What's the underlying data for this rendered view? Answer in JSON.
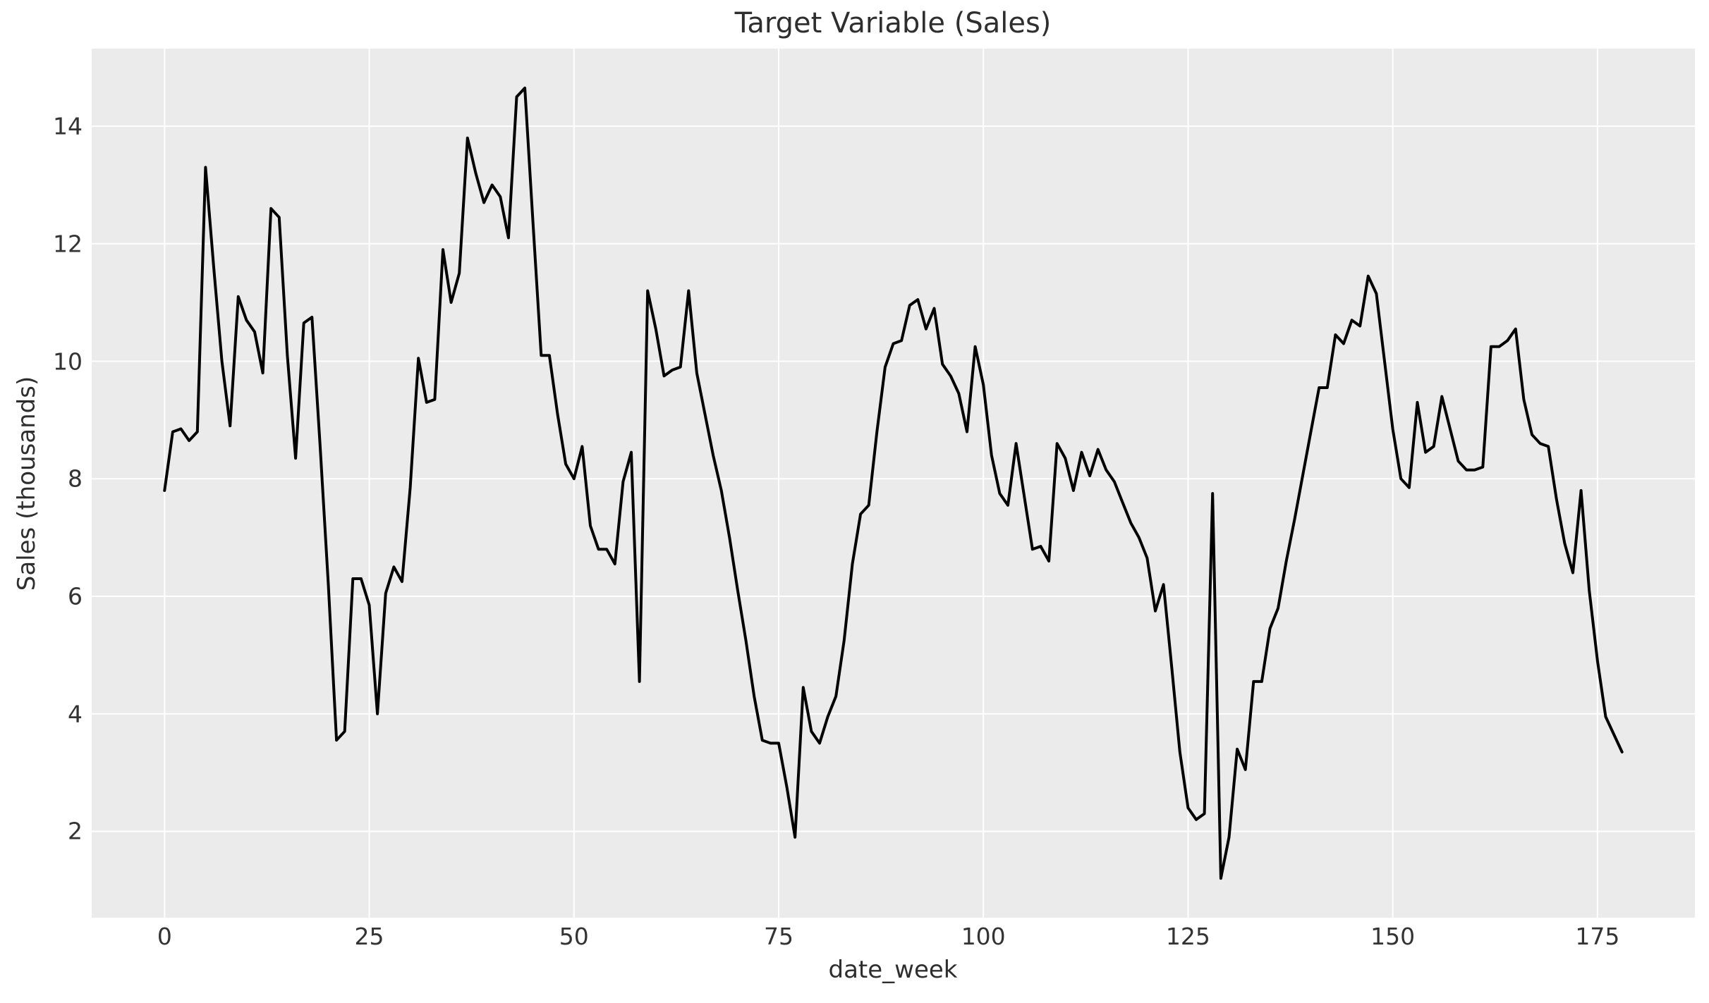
{
  "chart_data": {
    "type": "line",
    "title": "Target Variable (Sales)",
    "xlabel": "date_week",
    "ylabel": "Sales (thousands)",
    "series": [
      {
        "name": "Sales",
        "x_note": "x value = array index (week 0..178)",
        "values": [
          7.8,
          8.8,
          8.85,
          8.65,
          8.8,
          13.3,
          11.6,
          10.0,
          8.9,
          11.1,
          10.7,
          10.5,
          9.8,
          12.6,
          12.45,
          10.1,
          8.35,
          10.65,
          10.75,
          8.55,
          6.2,
          3.55,
          3.7,
          6.3,
          6.3,
          5.85,
          4.0,
          6.05,
          6.5,
          6.25,
          7.85,
          10.05,
          9.3,
          9.35,
          11.9,
          11.0,
          11.5,
          13.8,
          13.2,
          12.7,
          13.0,
          12.8,
          12.1,
          14.5,
          14.65,
          12.35,
          10.1,
          10.1,
          9.1,
          8.25,
          8.0,
          8.55,
          7.2,
          6.8,
          6.8,
          6.55,
          7.95,
          8.45,
          4.55,
          11.2,
          10.55,
          9.75,
          9.85,
          9.9,
          11.2,
          9.8,
          9.1,
          8.4,
          7.8,
          7.0,
          6.1,
          5.25,
          4.3,
          3.55,
          3.5,
          3.5,
          2.75,
          1.9,
          4.45,
          3.7,
          3.5,
          3.95,
          4.3,
          5.25,
          6.55,
          7.4,
          7.55,
          8.8,
          9.9,
          10.3,
          10.35,
          10.95,
          11.05,
          10.55,
          10.9,
          9.95,
          9.75,
          9.45,
          8.8,
          10.25,
          9.6,
          8.4,
          7.75,
          7.55,
          8.6,
          7.7,
          6.8,
          6.85,
          6.6,
          8.6,
          8.35,
          7.8,
          8.45,
          8.05,
          8.5,
          8.15,
          7.95,
          7.6,
          7.25,
          7.0,
          6.65,
          5.75,
          6.2,
          4.8,
          3.35,
          2.4,
          2.2,
          2.3,
          7.75,
          1.2,
          1.9,
          3.4,
          3.05,
          4.55,
          4.55,
          5.45,
          5.8,
          6.6,
          7.3,
          8.05,
          8.8,
          9.55,
          9.55,
          10.45,
          10.3,
          10.7,
          10.6,
          11.45,
          11.15,
          10.0,
          8.85,
          8.0,
          7.85,
          9.3,
          8.45,
          8.55,
          9.4,
          8.85,
          8.3,
          8.15,
          8.15,
          8.2,
          10.25,
          10.25,
          10.35,
          10.55,
          9.35,
          8.75,
          8.6,
          8.55,
          7.65,
          6.9,
          6.4,
          7.8,
          6.1,
          4.9,
          3.95,
          3.65,
          3.35
        ]
      }
    ],
    "xticks": [
      0,
      25,
      50,
      75,
      100,
      125,
      150,
      175
    ],
    "yticks": [
      2,
      4,
      6,
      8,
      10,
      12,
      14
    ],
    "xlim": [
      -8.9,
      186.9
    ],
    "ylim": [
      0.53,
      15.32
    ],
    "grid": true,
    "legend_position": "none",
    "colors": {
      "line": "#000000",
      "plot_background": "#ebebeb",
      "grid": "#ffffff",
      "text": "#333333",
      "figure_background": "#ffffff"
    },
    "line_width": 4
  }
}
